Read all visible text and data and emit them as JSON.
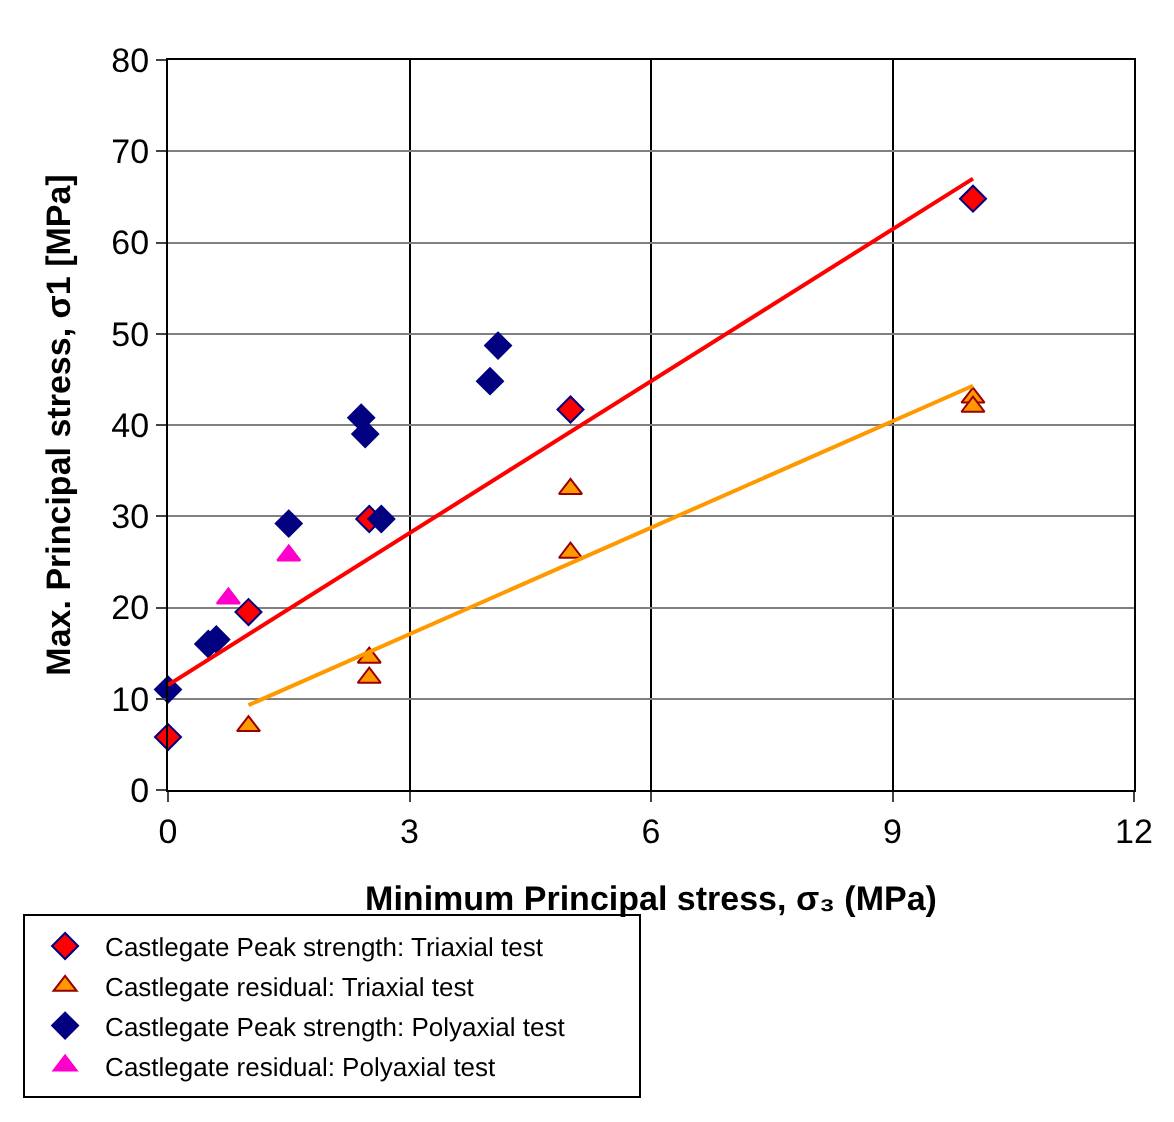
{
  "chart_data": {
    "type": "scatter",
    "xlabel": "Minimum Principal stress, σ₃ (MPa)",
    "ylabel": "Max. Principal stress, σ1 [MPa]",
    "xlim": [
      0,
      12
    ],
    "xticks": [
      0,
      3,
      6,
      9,
      12
    ],
    "ylim": [
      0,
      80
    ],
    "yticks": [
      0,
      10,
      20,
      30,
      40,
      50,
      60,
      70,
      80
    ],
    "grid": true,
    "legend": "bottom",
    "series": [
      {
        "name": "Castlegate Peak strength: Triaxial test",
        "color": "#ff0000",
        "marker": "diamond",
        "x": [
          0,
          1,
          2.5,
          5,
          10
        ],
        "values": [
          5.8,
          19.5,
          29.7,
          41.7,
          64.8
        ]
      },
      {
        "name": "Castlegate residual: Triaxial test",
        "color": "#ff9900",
        "marker": "triangle",
        "x": [
          1,
          2.5,
          2.5,
          5,
          5,
          10,
          10
        ],
        "values": [
          7,
          14.5,
          12.3,
          33,
          26,
          43,
          42
        ]
      },
      {
        "name": "Castlegate Peak strength: Polyaxial test",
        "color": "#000080",
        "marker": "diamond",
        "x": [
          0,
          0.5,
          0.6,
          1.5,
          2.4,
          2.45,
          2.65,
          4,
          4.1
        ],
        "values": [
          11,
          16,
          16.5,
          29.2,
          40.8,
          39,
          29.7,
          44.8,
          48.7
        ]
      },
      {
        "name": "Castlegate residual: Polyaxial test",
        "color": "#ff00cc",
        "marker": "triangle",
        "x": [
          0.75,
          1.5
        ],
        "values": [
          21,
          25.7
        ]
      },
      {
        "type": "line",
        "color": "#ff0000",
        "marker": "none",
        "x": [
          0,
          10
        ],
        "values": [
          11.5,
          67
        ]
      },
      {
        "type": "line",
        "color": "#ff9900",
        "marker": "none",
        "x": [
          1,
          10
        ],
        "values": [
          9.3,
          44.3
        ]
      }
    ]
  }
}
